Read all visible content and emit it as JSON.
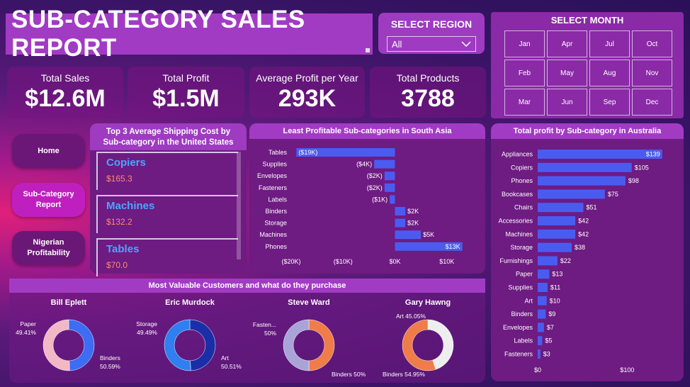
{
  "header": {
    "title": "SUB-CATEGORY SALES REPORT"
  },
  "region": {
    "label": "SELECT REGION",
    "value": "All"
  },
  "month": {
    "label": "SELECT MONTH",
    "months": [
      "Jan",
      "Apr",
      "Jul",
      "Oct",
      "Feb",
      "May",
      "Aug",
      "Nov",
      "Mar",
      "Jun",
      "Sep",
      "Dec"
    ]
  },
  "kpis": [
    {
      "label": "Total Sales",
      "value": "$12.6M"
    },
    {
      "label": "Total Profit",
      "value": "$1.5M"
    },
    {
      "label": "Average Profit per Year",
      "value": "293K"
    },
    {
      "label": "Total Products",
      "value": "3788"
    }
  ],
  "nav": {
    "home": "Home",
    "subcat_line1": "Sub-Category",
    "subcat_line2": "Report",
    "nigerian_line1": "Nigerian",
    "nigerian_line2": "Profitability"
  },
  "shipping": {
    "title_line1": "Top 3 Average Shipping Cost by",
    "title_line2": "Sub-category in the United States",
    "items": [
      {
        "name": "Copiers",
        "value": "$165.3"
      },
      {
        "name": "Machines",
        "value": "$132.2"
      },
      {
        "name": "Tables",
        "value": "$70.0"
      }
    ]
  },
  "customers": {
    "title": "Most Valuable Customers and what do they purchase"
  },
  "colors": {
    "bar": "#4a5cf0",
    "donut_blue": "#3d6cf5",
    "donut_pink": "#f2b8c6",
    "donut_dark": "#1a2ea8",
    "donut_orange": "#f07c4a",
    "donut_lav": "#aaa3d8",
    "donut_white": "#eeeeee"
  },
  "chart_data": [
    {
      "type": "bar",
      "orientation": "horizontal",
      "title": "Least Profitable Sub-categories in South Asia",
      "categories": [
        "Tables",
        "Supplies",
        "Envelopes",
        "Fasteners",
        "Labels",
        "Binders",
        "Storage",
        "Machines",
        "Phones"
      ],
      "values": [
        -19,
        -4,
        -2,
        -2,
        -1,
        2,
        2,
        5,
        13
      ],
      "value_labels": [
        "($19K)",
        "($4K)",
        "($2K)",
        "($2K)",
        "($1K)",
        "$2K",
        "$2K",
        "$5K",
        "$13K"
      ],
      "xticks": [
        -20,
        -10,
        0,
        10
      ],
      "xtick_labels": [
        "($20K)",
        "($10K)",
        "$0K",
        "$10K"
      ],
      "xlim": [
        -20,
        14
      ]
    },
    {
      "type": "bar",
      "orientation": "horizontal",
      "title": "Total profit by Sub-category in Australia",
      "categories": [
        "Appliances",
        "Copiers",
        "Phones",
        "Bookcases",
        "Chairs",
        "Accessories",
        "Machines",
        "Storage",
        "Furnishings",
        "Paper",
        "Supplies",
        "Art",
        "Binders",
        "Envelopes",
        "Labels",
        "Fasteners"
      ],
      "values": [
        139,
        105,
        98,
        75,
        51,
        42,
        42,
        38,
        22,
        13,
        11,
        10,
        9,
        7,
        5,
        3
      ],
      "value_labels": [
        "$139",
        "$105",
        "$98",
        "$75",
        "$51",
        "$42",
        "$42",
        "$38",
        "$22",
        "$13",
        "$11",
        "$10",
        "$9",
        "$7",
        "$5",
        "$3"
      ],
      "xticks": [
        0,
        100
      ],
      "xtick_labels": [
        "$0",
        "$100"
      ],
      "xlim": [
        0,
        140
      ]
    },
    {
      "type": "pie",
      "donut": true,
      "title": "Bill Eplett",
      "slices": [
        {
          "label": "Paper",
          "value": 49.41,
          "pct_label": "49.41%",
          "color": "#3d6cf5"
        },
        {
          "label": "Binders",
          "value": 50.59,
          "pct_label": "50.59%",
          "color": "#f2b8c6"
        }
      ]
    },
    {
      "type": "pie",
      "donut": true,
      "title": "Eric Murdock",
      "slices": [
        {
          "label": "Storage",
          "value": 49.49,
          "pct_label": "49.49%",
          "color": "#1a2ea8"
        },
        {
          "label": "Art",
          "value": 50.51,
          "pct_label": "50.51%",
          "color": "#2f7ff0"
        }
      ]
    },
    {
      "type": "pie",
      "donut": true,
      "title": "Steve Ward",
      "slices": [
        {
          "label": "Fasten...",
          "value": 50,
          "pct_label": "50%",
          "color": "#f07c4a"
        },
        {
          "label": "Binders",
          "value": 50,
          "pct_label": "50%",
          "color": "#aaa3d8"
        }
      ]
    },
    {
      "type": "pie",
      "donut": true,
      "title": "Gary Hawng",
      "slices": [
        {
          "label": "Art",
          "value": 45.05,
          "pct_label": "45.05%",
          "color": "#eeeeee"
        },
        {
          "label": "Binders",
          "value": 54.95,
          "pct_label": "54.95%",
          "color": "#f07c4a"
        }
      ]
    }
  ]
}
